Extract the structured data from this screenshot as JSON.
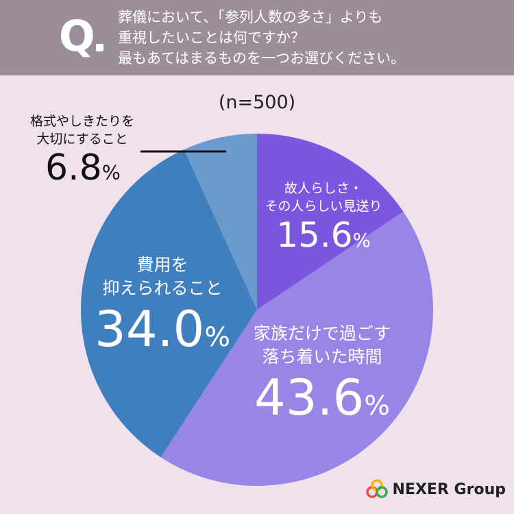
{
  "header": {
    "q_mark": "Q",
    "question_lines": [
      "葬儀において、「参列人数の多さ」よりも",
      "重視したいことは何ですか？",
      "最もあてはまるものを一つお選びください。"
    ]
  },
  "sample_size": "(n=500)",
  "chart_data": {
    "type": "pie",
    "title": "",
    "start_angle_deg": 0,
    "direction": "clockwise",
    "slices": [
      {
        "label_lines": [
          "故人らしさ・",
          "その人らしい見送り"
        ],
        "value": 15.6,
        "value_text": "15.6",
        "color": "#7b57e0"
      },
      {
        "label_lines": [
          "家族だけで過ごす",
          "落ち着いた時間"
        ],
        "value": 43.6,
        "value_text": "43.6",
        "color": "#9885e6"
      },
      {
        "label_lines": [
          "費用を",
          "抑えられること"
        ],
        "value": 34.0,
        "value_text": "34.0",
        "color": "#3f7fbd"
      },
      {
        "label_lines": [
          "格式やしきたりを",
          "大切にすること"
        ],
        "value": 6.8,
        "value_text": "6.8",
        "color": "#6b9bcc"
      }
    ],
    "unit": "%"
  },
  "logo": {
    "text": "NEXER Group",
    "colors": [
      "#e94b3c",
      "#f4b400",
      "#3aa657"
    ]
  }
}
